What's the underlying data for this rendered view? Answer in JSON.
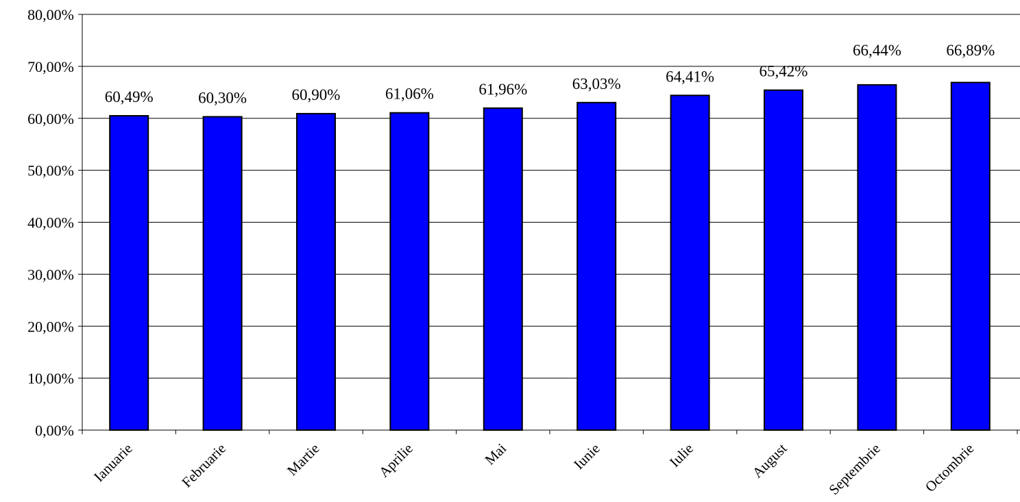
{
  "chart_data": {
    "type": "bar",
    "title": "",
    "xlabel": "",
    "ylabel": "",
    "categories": [
      "Ianuarie",
      "Februarie",
      "Martie",
      "Aprilie",
      "Mai",
      "Iunie",
      "Iulie",
      "August",
      "Septembrie",
      "Octombrie"
    ],
    "values": [
      60.49,
      60.3,
      60.9,
      61.06,
      61.96,
      63.03,
      64.41,
      65.42,
      66.44,
      66.89
    ],
    "value_labels": [
      "60,49%",
      "60,30%",
      "60,90%",
      "61,06%",
      "61,96%",
      "63,03%",
      "64,41%",
      "65,42%",
      "66,44%",
      "66,89%"
    ],
    "ylim": [
      0,
      80
    ],
    "y_ticks": [
      0,
      10,
      20,
      30,
      40,
      50,
      60,
      70,
      80
    ],
    "y_tick_labels": [
      "0,00%",
      "10,00%",
      "20,00%",
      "30,00%",
      "40,00%",
      "50,00%",
      "60,00%",
      "70,00%",
      "80,00%"
    ],
    "grid": true,
    "legend": "none",
    "bar_color": "#0000ff",
    "bar_edge_color": "#000000"
  }
}
